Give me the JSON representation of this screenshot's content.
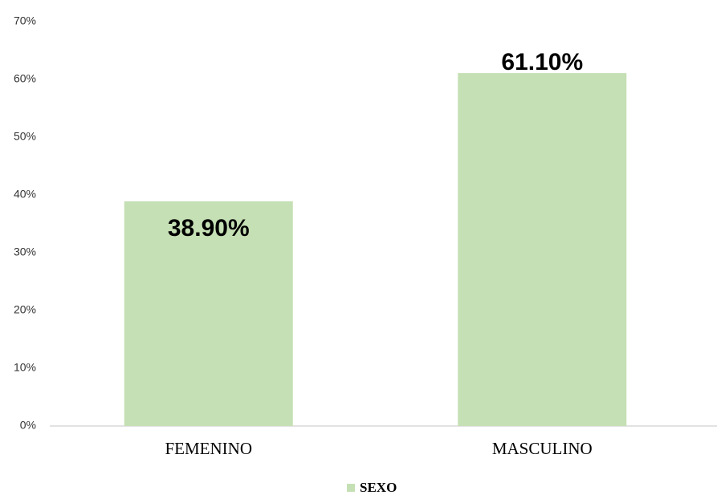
{
  "chart_data": {
    "type": "bar",
    "categories": [
      "FEMENINO",
      "MASCULINO"
    ],
    "series": [
      {
        "name": "SEXO",
        "color": "#c5e0b4",
        "values": [
          38.9,
          61.1
        ],
        "value_labels": [
          "38.90%",
          "61.10%"
        ]
      }
    ],
    "ylim": [
      0,
      70
    ],
    "yticks": [
      {
        "value": 0,
        "label": "0%"
      },
      {
        "value": 10,
        "label": "10%"
      },
      {
        "value": 20,
        "label": "20%"
      },
      {
        "value": 30,
        "label": "30%"
      },
      {
        "value": 40,
        "label": "40%"
      },
      {
        "value": 50,
        "label": "50%"
      },
      {
        "value": 60,
        "label": "60%"
      },
      {
        "value": 70,
        "label": "70%"
      }
    ],
    "grid": false,
    "legend": "bottom"
  }
}
